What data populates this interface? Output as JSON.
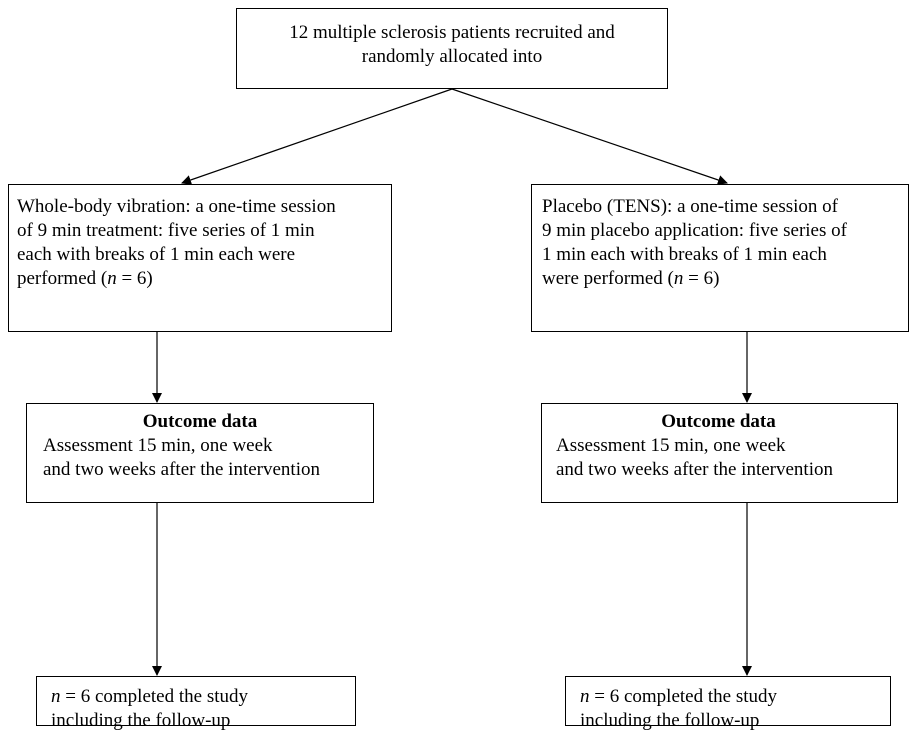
{
  "enrollment": {
    "lines": [
      "12 multiple sclerosis patients recruited and",
      "randomly allocated into"
    ]
  },
  "arms": [
    {
      "intervention_lines": [
        "Whole-body vibration: a one-time session",
        "of 9 min treatment: five series of 1 min",
        "each with breaks of 1 min each were",
        "performed ("
      ],
      "n_symbol": "n",
      "n_value": " = 6)",
      "outcome_heading": "Outcome data",
      "outcome_lines": [
        "Assessment 15 min, one week",
        "and two weeks after the intervention"
      ],
      "final_n_symbol": "n",
      "final_lines": [
        " = 6 completed the study",
        "including the follow-up"
      ]
    },
    {
      "intervention_lines": [
        "Placebo (TENS): a one-time session of",
        "9 min placebo application: five series of",
        "1 min each with breaks of 1 min each",
        "were performed ("
      ],
      "n_symbol": "n",
      "n_value": " = 6)",
      "outcome_heading": "Outcome data",
      "outcome_lines": [
        "Assessment 15 min, one week",
        "and two weeks after the intervention"
      ],
      "final_n_symbol": "n",
      "final_lines": [
        " = 6 completed the study",
        "including the follow-up"
      ]
    }
  ]
}
